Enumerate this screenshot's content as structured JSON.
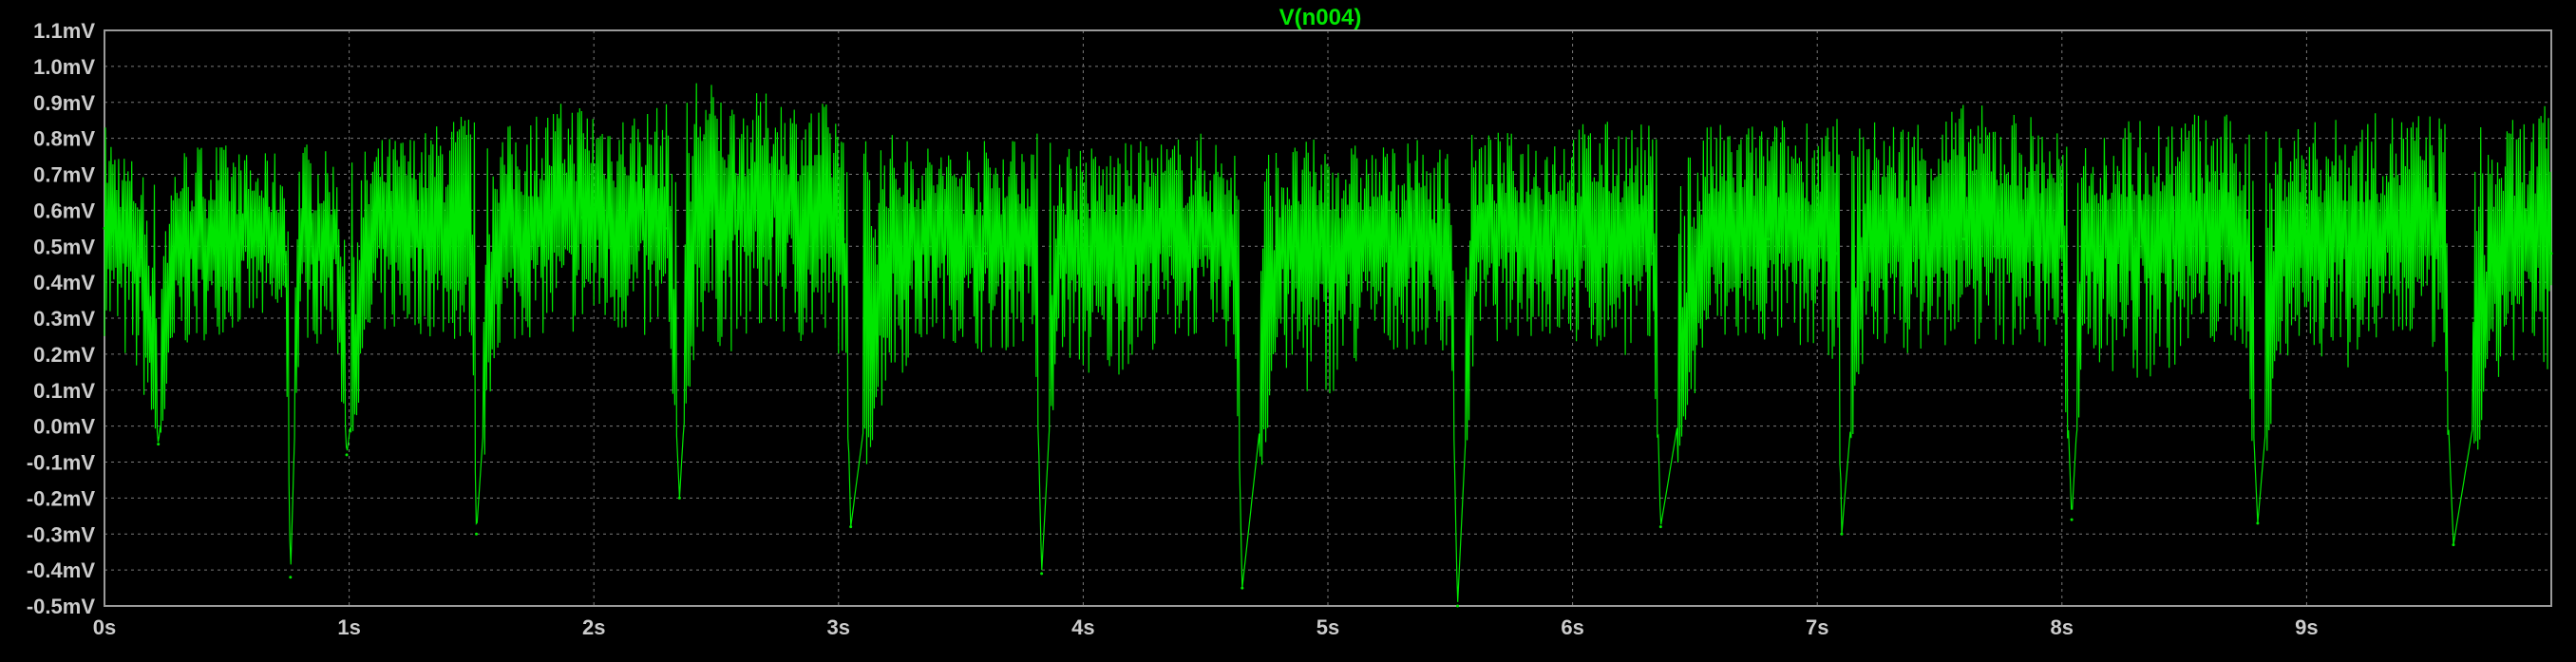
{
  "chart_data": {
    "type": "line",
    "title": "V(n004)",
    "xlabel": "",
    "ylabel": "",
    "x_unit": "s",
    "y_unit": "mV",
    "xlim": [
      0,
      10
    ],
    "ylim": [
      -0.5,
      1.1
    ],
    "x_ticks": [
      "0s",
      "1s",
      "2s",
      "3s",
      "4s",
      "5s",
      "6s",
      "7s",
      "8s",
      "9s"
    ],
    "y_ticks": [
      "1.1mV",
      "1.0mV",
      "0.9mV",
      "0.8mV",
      "0.7mV",
      "0.6mV",
      "0.5mV",
      "0.4mV",
      "0.3mV",
      "0.2mV",
      "0.1mV",
      "0.0mV",
      "-0.1mV",
      "-0.2mV",
      "-0.3mV",
      "-0.4mV",
      "-0.5mV"
    ],
    "grid": true,
    "colors": {
      "background": "#000000",
      "axes": "#9a9a9a",
      "grid": "#7a7a7a",
      "series": "#00e600",
      "title": "#00e600",
      "ticks": "#cccccc"
    },
    "series": [
      {
        "name": "V(n004)",
        "x": [
          0.0,
          0.15,
          0.22,
          0.3,
          0.45,
          0.62,
          0.74,
          0.76,
          0.8,
          0.95,
          0.99,
          1.1,
          1.3,
          1.5,
          1.52,
          1.6,
          1.75,
          1.95,
          2.1,
          2.3,
          2.35,
          2.42,
          2.55,
          2.75,
          2.9,
          3.02,
          3.05,
          3.2,
          3.4,
          3.6,
          3.8,
          3.83,
          3.9,
          4.06,
          4.3,
          4.5,
          4.62,
          4.65,
          4.8,
          4.95,
          5.2,
          5.4,
          5.5,
          5.53,
          5.6,
          5.8,
          6.05,
          6.2,
          6.33,
          6.36,
          6.55,
          6.8,
          7.0,
          7.08,
          7.1,
          7.2,
          7.35,
          7.6,
          7.85,
          8.0,
          8.04,
          8.1,
          8.3,
          8.55,
          8.75,
          8.8,
          8.9,
          9.15,
          9.4,
          9.55,
          9.6,
          9.8,
          10.0
        ],
        "y": [
          0.55,
          0.47,
          -0.05,
          0.5,
          0.48,
          0.52,
          0.45,
          -0.42,
          0.5,
          0.5,
          -0.08,
          0.52,
          0.55,
          0.45,
          -0.3,
          0.52,
          0.52,
          0.58,
          0.55,
          0.55,
          -0.2,
          0.6,
          0.58,
          0.62,
          0.55,
          0.52,
          -0.28,
          0.5,
          0.52,
          0.48,
          0.5,
          -0.41,
          0.48,
          0.45,
          0.52,
          0.5,
          0.45,
          -0.45,
          0.48,
          0.47,
          0.5,
          0.48,
          0.45,
          -0.5,
          0.5,
          0.52,
          0.5,
          0.52,
          0.48,
          -0.28,
          0.5,
          0.52,
          0.5,
          0.48,
          -0.3,
          0.52,
          0.5,
          0.52,
          0.52,
          0.5,
          -0.26,
          0.5,
          0.52,
          0.5,
          0.5,
          -0.27,
          0.52,
          0.5,
          0.52,
          0.5,
          -0.33,
          0.5,
          0.48
        ],
        "envelope_high": [
          0.85,
          0.72,
          0.7,
          0.78,
          0.8,
          0.75,
          0.78,
          0.8,
          0.8,
          0.75,
          0.72,
          0.8,
          0.82,
          0.9,
          0.85,
          0.82,
          0.88,
          0.92,
          0.88,
          0.9,
          0.88,
          1.0,
          0.92,
          0.93,
          0.9,
          0.91,
          0.85,
          0.82,
          0.78,
          0.8,
          0.85,
          0.8,
          0.82,
          0.78,
          0.8,
          0.82,
          0.8,
          0.82,
          0.78,
          0.8,
          0.78,
          0.8,
          0.78,
          0.8,
          0.82,
          0.82,
          0.85,
          0.85,
          0.84,
          0.8,
          0.84,
          0.85,
          0.88,
          0.86,
          0.84,
          0.85,
          0.86,
          0.9,
          0.88,
          0.84,
          0.82,
          0.84,
          0.86,
          0.88,
          0.86,
          0.82,
          0.84,
          0.86,
          0.88,
          0.88,
          0.86,
          0.84,
          0.9
        ],
        "envelope_low": [
          0.25,
          0.1,
          -0.08,
          0.2,
          0.25,
          0.28,
          0.25,
          -0.42,
          0.25,
          0.2,
          -0.1,
          0.25,
          0.25,
          0.22,
          -0.3,
          0.2,
          0.25,
          0.25,
          0.25,
          0.2,
          -0.2,
          0.25,
          0.2,
          0.25,
          0.2,
          0.2,
          -0.28,
          0.1,
          0.25,
          0.2,
          0.22,
          -0.41,
          0.2,
          0.1,
          0.22,
          0.25,
          0.2,
          -0.45,
          0.15,
          0.05,
          0.2,
          0.22,
          0.2,
          -0.5,
          0.22,
          0.25,
          0.2,
          0.2,
          0.15,
          -0.28,
          0.2,
          0.22,
          0.2,
          0.18,
          -0.3,
          0.22,
          0.2,
          0.22,
          0.22,
          0.2,
          -0.26,
          0.2,
          0.1,
          0.2,
          0.22,
          -0.27,
          0.2,
          0.15,
          0.22,
          0.2,
          -0.33,
          0.15,
          0.15
        ]
      }
    ]
  }
}
